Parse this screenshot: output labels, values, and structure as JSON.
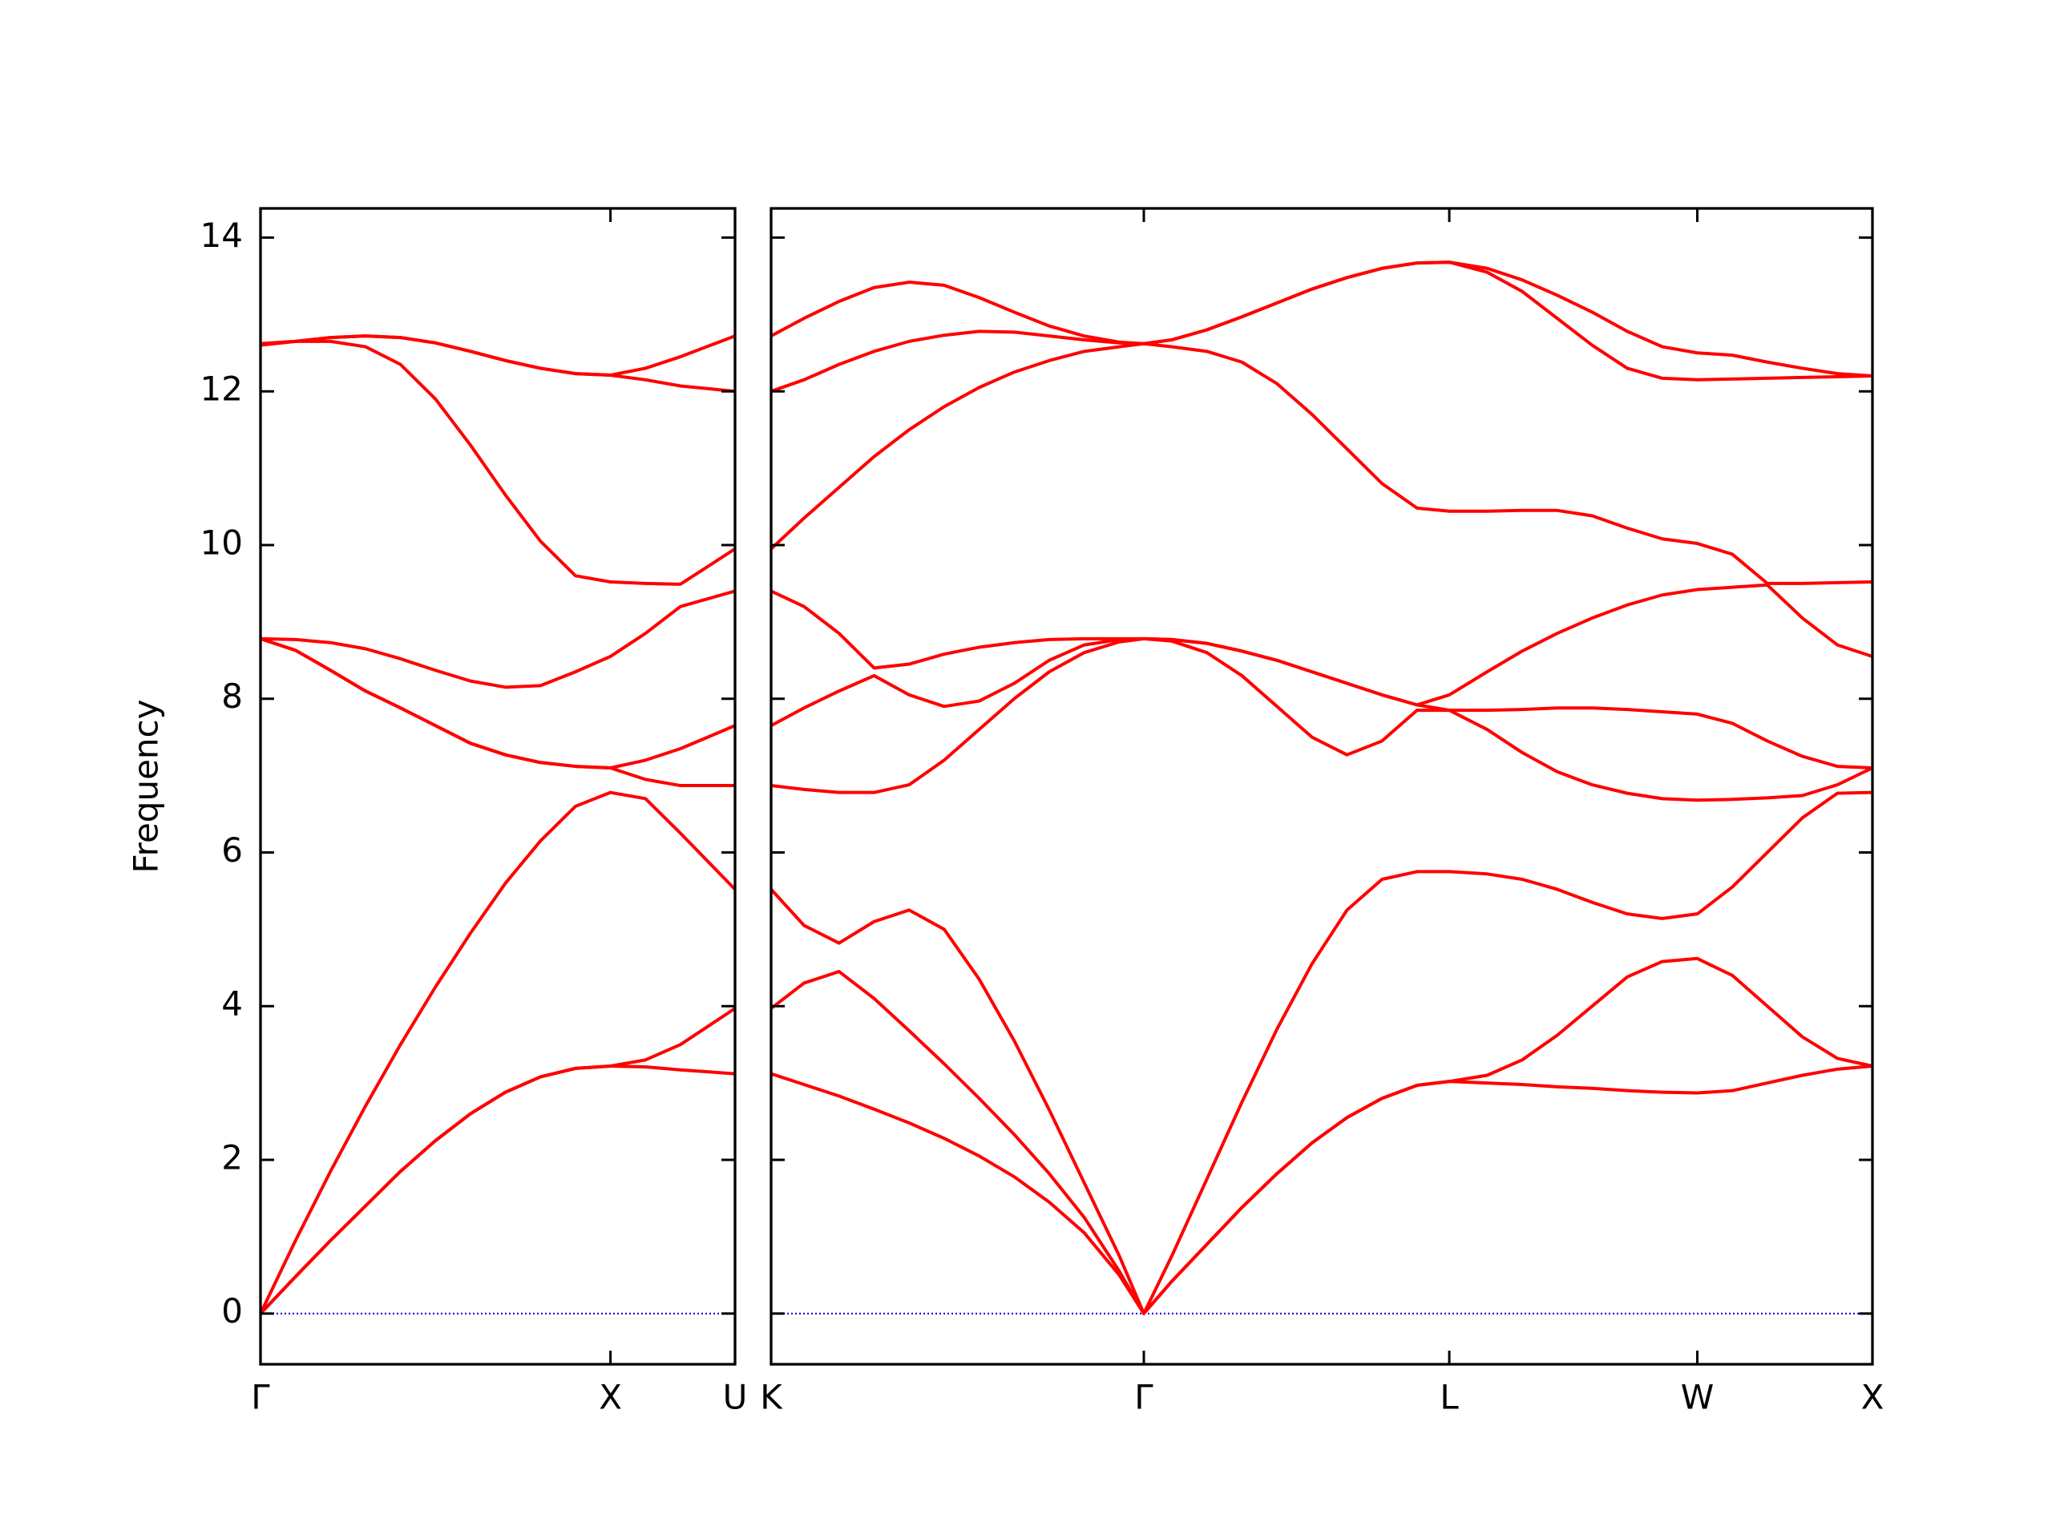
{
  "chart_data": [
    {
      "type": "line",
      "ylabel": "Frequency",
      "xlim": [
        0,
        1.356
      ],
      "ylim": [
        -0.66,
        14.38
      ],
      "xticks": [
        {
          "value": 0,
          "label": "Γ"
        },
        {
          "value": 1,
          "label": "X"
        },
        {
          "value": 1.356,
          "label": "U"
        }
      ],
      "yticks": [
        0,
        2,
        4,
        6,
        8,
        10,
        12,
        14
      ],
      "hline": {
        "value": 0,
        "color": "#0000cc",
        "style": "dotted"
      },
      "x": [
        0,
        0.1,
        0.2,
        0.3,
        0.4,
        0.5,
        0.6,
        0.7,
        0.8,
        0.9,
        1.0,
        1.1,
        1.2,
        1.356
      ],
      "series": [
        {
          "color": "#ff0000",
          "values": [
            0,
            0.48,
            0.95,
            1.4,
            1.85,
            2.25,
            2.6,
            2.88,
            3.08,
            3.19,
            3.22,
            3.21,
            3.17,
            3.12
          ]
        },
        {
          "color": "#ff0000",
          "values": [
            0,
            0.48,
            0.95,
            1.4,
            1.85,
            2.25,
            2.6,
            2.88,
            3.08,
            3.19,
            3.22,
            3.3,
            3.5,
            3.97
          ]
        },
        {
          "color": "#ff0000",
          "values": [
            0,
            0.95,
            1.85,
            2.7,
            3.5,
            4.25,
            4.95,
            5.6,
            6.15,
            6.6,
            6.78,
            6.7,
            6.25,
            5.52
          ]
        },
        {
          "color": "#ff0000",
          "values": [
            8.78,
            8.63,
            8.37,
            8.1,
            7.88,
            7.65,
            7.42,
            7.27,
            7.17,
            7.12,
            7.1,
            6.95,
            6.87,
            6.87
          ]
        },
        {
          "color": "#ff0000",
          "values": [
            8.78,
            8.63,
            8.37,
            8.1,
            7.88,
            7.65,
            7.42,
            7.27,
            7.17,
            7.12,
            7.1,
            7.2,
            7.35,
            7.65
          ]
        },
        {
          "color": "#ff0000",
          "values": [
            8.78,
            8.77,
            8.73,
            8.65,
            8.52,
            8.37,
            8.23,
            8.15,
            8.17,
            8.35,
            8.55,
            8.85,
            9.2,
            9.4
          ]
        },
        {
          "color": "#ff0000",
          "values": [
            12.6,
            12.65,
            12.65,
            12.58,
            12.35,
            11.9,
            11.3,
            10.65,
            10.05,
            9.6,
            9.52,
            9.5,
            9.49,
            9.95
          ]
        },
        {
          "color": "#ff0000",
          "values": [
            12.62,
            12.65,
            12.7,
            12.72,
            12.7,
            12.63,
            12.52,
            12.4,
            12.3,
            12.23,
            12.21,
            12.15,
            12.07,
            12.0
          ]
        },
        {
          "color": "#ff0000",
          "values": [
            12.62,
            12.65,
            12.7,
            12.72,
            12.7,
            12.63,
            12.52,
            12.4,
            12.3,
            12.23,
            12.21,
            12.3,
            12.45,
            12.72
          ]
        }
      ]
    },
    {
      "type": "line",
      "sharey": true,
      "xlim": [
        1.356,
        4.5
      ],
      "xticks": [
        {
          "value": 1.356,
          "label": "K"
        },
        {
          "value": 2.42,
          "label": "Γ"
        },
        {
          "value": 3.292,
          "label": "L"
        },
        {
          "value": 4.0,
          "label": "W"
        },
        {
          "value": 4.5,
          "label": "X"
        }
      ],
      "hline": {
        "value": 0,
        "color": "#0000cc",
        "style": "dotted"
      },
      "x": [
        1.356,
        1.45,
        1.55,
        1.65,
        1.75,
        1.85,
        1.95,
        2.05,
        2.15,
        2.25,
        2.35,
        2.42,
        2.5,
        2.6,
        2.7,
        2.8,
        2.9,
        3.0,
        3.1,
        3.2,
        3.292,
        3.4,
        3.5,
        3.6,
        3.7,
        3.8,
        3.9,
        4.0,
        4.1,
        4.2,
        4.3,
        4.4,
        4.5
      ],
      "series": [
        {
          "color": "#ff0000",
          "values": [
            3.12,
            2.98,
            2.83,
            2.66,
            2.48,
            2.28,
            2.05,
            1.78,
            1.45,
            1.05,
            0.5,
            0,
            0.42,
            0.9,
            1.38,
            1.82,
            2.22,
            2.55,
            2.8,
            2.97,
            3.02,
            3.0,
            2.98,
            2.95,
            2.93,
            2.9,
            2.88,
            2.87,
            2.9,
            3.0,
            3.1,
            3.18,
            3.22
          ]
        },
        {
          "color": "#ff0000",
          "values": [
            3.97,
            4.3,
            4.45,
            4.1,
            3.68,
            3.25,
            2.8,
            2.33,
            1.82,
            1.25,
            0.55,
            0,
            0.42,
            0.9,
            1.38,
            1.82,
            2.22,
            2.55,
            2.8,
            2.97,
            3.02,
            3.1,
            3.3,
            3.62,
            4.0,
            4.38,
            4.58,
            4.62,
            4.4,
            4.0,
            3.6,
            3.32,
            3.22
          ]
        },
        {
          "color": "#ff0000",
          "values": [
            5.52,
            5.05,
            4.82,
            5.1,
            5.25,
            5.0,
            4.35,
            3.55,
            2.65,
            1.7,
            0.75,
            0,
            0.75,
            1.75,
            2.75,
            3.7,
            4.55,
            5.25,
            5.65,
            5.75,
            5.75,
            5.72,
            5.65,
            5.52,
            5.35,
            5.2,
            5.14,
            5.2,
            5.55,
            6.0,
            6.45,
            6.77,
            6.78
          ]
        },
        {
          "color": "#ff0000",
          "values": [
            6.87,
            6.82,
            6.78,
            6.78,
            6.88,
            7.2,
            7.6,
            8.0,
            8.35,
            8.6,
            8.74,
            8.78,
            8.75,
            8.6,
            8.3,
            7.9,
            7.5,
            7.27,
            7.45,
            7.85,
            7.85,
            7.6,
            7.3,
            7.05,
            6.88,
            6.77,
            6.7,
            6.68,
            6.69,
            6.71,
            6.74,
            6.88,
            7.1
          ]
        },
        {
          "color": "#ff0000",
          "values": [
            7.65,
            7.88,
            8.1,
            8.3,
            8.05,
            7.9,
            7.97,
            8.2,
            8.5,
            8.7,
            8.77,
            8.78,
            8.77,
            8.72,
            8.62,
            8.5,
            8.35,
            8.2,
            8.05,
            7.92,
            7.85,
            7.85,
            7.86,
            7.88,
            7.88,
            7.86,
            7.83,
            7.8,
            7.68,
            7.45,
            7.25,
            7.12,
            7.1
          ]
        },
        {
          "color": "#ff0000",
          "values": [
            9.4,
            9.2,
            8.85,
            8.4,
            8.45,
            8.58,
            8.67,
            8.73,
            8.77,
            8.78,
            8.78,
            8.78,
            8.77,
            8.72,
            8.62,
            8.5,
            8.35,
            8.2,
            8.05,
            7.92,
            8.05,
            8.35,
            8.62,
            8.85,
            9.05,
            9.22,
            9.35,
            9.42,
            9.45,
            9.48,
            9.05,
            8.7,
            8.55
          ]
        },
        {
          "color": "#ff0000",
          "values": [
            9.95,
            10.35,
            10.75,
            11.15,
            11.5,
            11.8,
            12.05,
            12.25,
            12.4,
            12.52,
            12.58,
            12.62,
            12.58,
            12.52,
            12.38,
            12.1,
            11.7,
            11.25,
            10.8,
            10.48,
            10.44,
            10.44,
            10.45,
            10.45,
            10.38,
            10.22,
            10.08,
            10.02,
            9.88,
            9.5,
            9.5,
            9.51,
            9.52
          ]
        },
        {
          "color": "#ff0000",
          "values": [
            12.0,
            12.15,
            12.35,
            12.52,
            12.65,
            12.73,
            12.78,
            12.77,
            12.72,
            12.67,
            12.63,
            12.62,
            12.67,
            12.8,
            12.97,
            13.15,
            13.33,
            13.48,
            13.6,
            13.67,
            13.68,
            13.55,
            13.3,
            12.95,
            12.6,
            12.3,
            12.17,
            12.15,
            12.16,
            12.17,
            12.18,
            12.19,
            12.2
          ]
        },
        {
          "color": "#ff0000",
          "values": [
            12.72,
            12.95,
            13.17,
            13.35,
            13.42,
            13.38,
            13.22,
            13.03,
            12.85,
            12.72,
            12.64,
            12.62,
            12.67,
            12.8,
            12.97,
            13.15,
            13.33,
            13.48,
            13.6,
            13.67,
            13.68,
            13.6,
            13.45,
            13.25,
            13.03,
            12.78,
            12.58,
            12.5,
            12.47,
            12.38,
            12.3,
            12.23,
            12.2
          ]
        }
      ]
    }
  ]
}
